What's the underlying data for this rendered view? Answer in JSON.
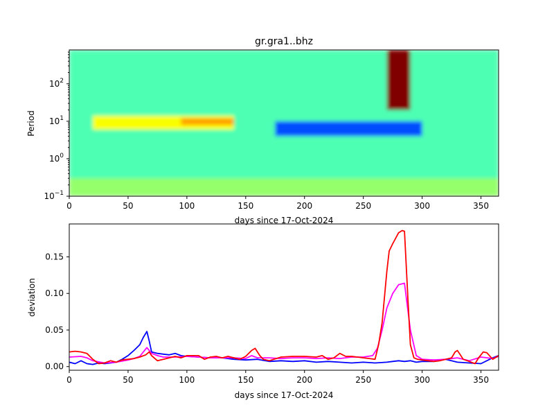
{
  "chart_data": [
    {
      "type": "heatmap",
      "title": "gr.gra1..bhz",
      "xlabel": "days since 17-Oct-2024",
      "ylabel": "Period",
      "xlim": [
        0,
        365
      ],
      "ylim": [
        0.1,
        800
      ],
      "yscale": "log",
      "colormap": "jet",
      "xticks": [
        "0",
        "50",
        "100",
        "150",
        "200",
        "250",
        "300",
        "350"
      ],
      "xtick_values": [
        0,
        50,
        100,
        150,
        200,
        250,
        300,
        350
      ],
      "yticks": [
        "10",
        "10",
        "10",
        "10"
      ],
      "ytick_exponents": [
        "−1",
        "0",
        "1",
        "2"
      ],
      "ytick_values": [
        0.1,
        1,
        10,
        100
      ],
      "features": [
        {
          "name": "background",
          "x": [
            0,
            365
          ],
          "y": [
            0.1,
            800
          ],
          "level": 0.45
        },
        {
          "name": "low-period warm band",
          "x": [
            0,
            365
          ],
          "y": [
            0.1,
            0.3
          ],
          "level": 0.52
        },
        {
          "name": "mid-period yellow patches",
          "x": [
            20,
            140
          ],
          "y": [
            6,
            14
          ],
          "level": 0.62
        },
        {
          "name": "orange patch",
          "x": [
            95,
            140
          ],
          "y": [
            8,
            12
          ],
          "level": 0.72
        },
        {
          "name": "blue microseism band",
          "x": [
            175,
            300
          ],
          "y": [
            4,
            10
          ],
          "level": 0.2
        },
        {
          "name": "long-period event",
          "x": [
            270,
            290
          ],
          "y": [
            20,
            800
          ],
          "level": 1.0
        }
      ]
    },
    {
      "type": "line",
      "xlabel": "days since 17-Oct-2024",
      "ylabel": "deviation",
      "xlim": [
        0,
        365
      ],
      "ylim": [
        -0.005,
        0.195
      ],
      "xticks": [
        "0",
        "50",
        "100",
        "150",
        "200",
        "250",
        "300",
        "350"
      ],
      "xtick_values": [
        0,
        50,
        100,
        150,
        200,
        250,
        300,
        350
      ],
      "yticks": [
        "0.00",
        "0.05",
        "0.10",
        "0.15"
      ],
      "ytick_values": [
        0,
        0.05,
        0.1,
        0.15
      ],
      "series": [
        {
          "color": "#0000ff",
          "x": [
            0,
            5,
            10,
            15,
            20,
            25,
            30,
            35,
            40,
            45,
            50,
            55,
            60,
            63,
            66,
            68,
            70,
            75,
            80,
            85,
            90,
            95,
            100,
            110,
            120,
            130,
            140,
            150,
            160,
            170,
            180,
            190,
            200,
            210,
            220,
            230,
            240,
            250,
            260,
            270,
            275,
            280,
            285,
            290,
            295,
            300,
            310,
            320,
            330,
            340,
            350,
            360,
            365
          ],
          "y": [
            0.006,
            0.004,
            0.008,
            0.004,
            0.003,
            0.005,
            0.004,
            0.005,
            0.006,
            0.01,
            0.015,
            0.022,
            0.03,
            0.04,
            0.048,
            0.035,
            0.02,
            0.018,
            0.017,
            0.016,
            0.018,
            0.015,
            0.014,
            0.013,
            0.012,
            0.012,
            0.01,
            0.009,
            0.01,
            0.007,
            0.008,
            0.007,
            0.008,
            0.006,
            0.007,
            0.006,
            0.005,
            0.006,
            0.005,
            0.006,
            0.007,
            0.008,
            0.007,
            0.008,
            0.006,
            0.007,
            0.007,
            0.01,
            0.006,
            0.005,
            0.004,
            0.012,
            0.015
          ]
        },
        {
          "color": "#ff00ff",
          "x": [
            0,
            10,
            15,
            20,
            30,
            40,
            50,
            55,
            60,
            63,
            66,
            68,
            70,
            75,
            80,
            90,
            100,
            110,
            120,
            130,
            140,
            150,
            155,
            160,
            170,
            180,
            190,
            200,
            210,
            220,
            230,
            240,
            250,
            258,
            262,
            266,
            270,
            275,
            280,
            285,
            290,
            295,
            300,
            310,
            320,
            330,
            340,
            350,
            360,
            365
          ],
          "y": [
            0.013,
            0.014,
            0.012,
            0.008,
            0.005,
            0.006,
            0.009,
            0.011,
            0.014,
            0.02,
            0.026,
            0.022,
            0.018,
            0.015,
            0.013,
            0.013,
            0.014,
            0.013,
            0.012,
            0.012,
            0.012,
            0.011,
            0.015,
            0.012,
            0.012,
            0.011,
            0.012,
            0.012,
            0.011,
            0.012,
            0.011,
            0.013,
            0.013,
            0.015,
            0.025,
            0.05,
            0.08,
            0.1,
            0.112,
            0.114,
            0.05,
            0.015,
            0.01,
            0.009,
            0.01,
            0.012,
            0.008,
            0.013,
            0.011,
            0.014
          ]
        },
        {
          "color": "#ff0000",
          "x": [
            0,
            5,
            10,
            15,
            20,
            25,
            30,
            35,
            40,
            45,
            50,
            55,
            60,
            65,
            68,
            70,
            75,
            80,
            85,
            90,
            95,
            100,
            110,
            115,
            120,
            125,
            130,
            135,
            140,
            145,
            150,
            155,
            158,
            162,
            165,
            170,
            180,
            190,
            200,
            210,
            215,
            220,
            225,
            230,
            235,
            240,
            245,
            250,
            255,
            260,
            263,
            266,
            270,
            272,
            275,
            280,
            283,
            285,
            288,
            290,
            293,
            296,
            300,
            305,
            310,
            315,
            320,
            325,
            328,
            330,
            335,
            340,
            345,
            348,
            352,
            355,
            360,
            365
          ],
          "y": [
            0.02,
            0.021,
            0.02,
            0.018,
            0.01,
            0.004,
            0.005,
            0.008,
            0.006,
            0.009,
            0.01,
            0.011,
            0.013,
            0.016,
            0.02,
            0.015,
            0.008,
            0.01,
            0.012,
            0.014,
            0.012,
            0.015,
            0.015,
            0.01,
            0.013,
            0.014,
            0.012,
            0.014,
            0.012,
            0.01,
            0.014,
            0.022,
            0.025,
            0.015,
            0.01,
            0.008,
            0.013,
            0.014,
            0.014,
            0.013,
            0.015,
            0.01,
            0.012,
            0.018,
            0.014,
            0.014,
            0.013,
            0.012,
            0.011,
            0.01,
            0.03,
            0.06,
            0.13,
            0.158,
            0.168,
            0.183,
            0.186,
            0.185,
            0.09,
            0.03,
            0.012,
            0.01,
            0.009,
            0.008,
            0.007,
            0.008,
            0.01,
            0.012,
            0.02,
            0.022,
            0.01,
            0.007,
            0.004,
            0.012,
            0.02,
            0.019,
            0.01,
            0.015
          ]
        }
      ]
    }
  ]
}
